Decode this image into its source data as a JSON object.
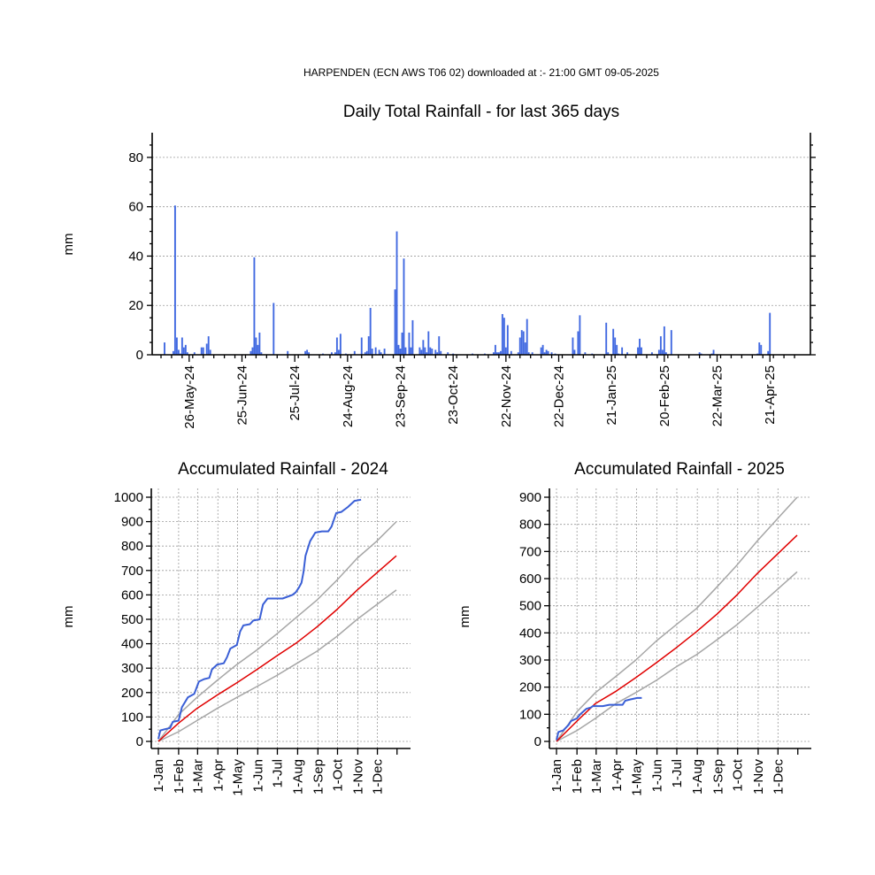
{
  "header": "HARPENDEN (ECN AWS T06 02) downloaded at :- 21:00 GMT 09-05-2025",
  "colors": {
    "bar": "#4169e1",
    "actual": "#3a5fd6",
    "mean": "#e00000",
    "range": "#a6a6a6"
  },
  "chart_data": [
    {
      "id": "daily",
      "type": "bar",
      "title": "Daily Total Rainfall - for last 365 days",
      "ylabel": "mm",
      "ylim": [
        0,
        90
      ],
      "yticks": [
        0,
        20,
        40,
        60,
        80
      ],
      "x_start": "2024-05-10",
      "x_end": "2025-05-09",
      "x_ticks": [
        "26-May-24",
        "25-Jun-24",
        "25-Jul-24",
        "24-Aug-24",
        "23-Sep-24",
        "23-Oct-24",
        "22-Nov-24",
        "22-Dec-24",
        "21-Jan-25",
        "20-Feb-25",
        "22-Mar-25",
        "21-Apr-25"
      ],
      "grid": true,
      "bars": [
        [
          "2024-05-12",
          5
        ],
        [
          "2024-05-17",
          1.5
        ],
        [
          "2024-05-18",
          60.5
        ],
        [
          "2024-05-19",
          7
        ],
        [
          "2024-05-20",
          2
        ],
        [
          "2024-05-21",
          0.5
        ],
        [
          "2024-05-22",
          7
        ],
        [
          "2024-05-23",
          3
        ],
        [
          "2024-05-24",
          4
        ],
        [
          "2024-05-25",
          1
        ],
        [
          "2024-05-29",
          1
        ],
        [
          "2024-06-02",
          3
        ],
        [
          "2024-06-03",
          3
        ],
        [
          "2024-06-05",
          4.5
        ],
        [
          "2024-06-06",
          7.5
        ],
        [
          "2024-06-07",
          2
        ],
        [
          "2024-06-30",
          1.5
        ],
        [
          "2024-07-01",
          3
        ],
        [
          "2024-07-02",
          39.5
        ],
        [
          "2024-07-03",
          7
        ],
        [
          "2024-07-04",
          4
        ],
        [
          "2024-07-05",
          9
        ],
        [
          "2024-07-06",
          1
        ],
        [
          "2024-07-13",
          21
        ],
        [
          "2024-07-21",
          1.5
        ],
        [
          "2024-07-31",
          1.5
        ],
        [
          "2024-08-01",
          2
        ],
        [
          "2024-08-02",
          1
        ],
        [
          "2024-08-10",
          0.5
        ],
        [
          "2024-08-15",
          1
        ],
        [
          "2024-08-17",
          1
        ],
        [
          "2024-08-18",
          7
        ],
        [
          "2024-08-19",
          2
        ],
        [
          "2024-08-20",
          8.5
        ],
        [
          "2024-08-23",
          0.5
        ],
        [
          "2024-08-28",
          1.5
        ],
        [
          "2024-09-01",
          7
        ],
        [
          "2024-09-03",
          1
        ],
        [
          "2024-09-04",
          1.5
        ],
        [
          "2024-09-05",
          7.5
        ],
        [
          "2024-09-06",
          19
        ],
        [
          "2024-09-07",
          2.5
        ],
        [
          "2024-09-09",
          3
        ],
        [
          "2024-09-11",
          2
        ],
        [
          "2024-09-12",
          1
        ],
        [
          "2024-09-14",
          2.5
        ],
        [
          "2024-09-20",
          26.5
        ],
        [
          "2024-09-21",
          50
        ],
        [
          "2024-09-22",
          4
        ],
        [
          "2024-09-23",
          2.5
        ],
        [
          "2024-09-24",
          9
        ],
        [
          "2024-09-25",
          39
        ],
        [
          "2024-09-26",
          3
        ],
        [
          "2024-09-28",
          9
        ],
        [
          "2024-09-29",
          3
        ],
        [
          "2024-09-30",
          14
        ],
        [
          "2024-10-04",
          3
        ],
        [
          "2024-10-05",
          2
        ],
        [
          "2024-10-06",
          6
        ],
        [
          "2024-10-07",
          3
        ],
        [
          "2024-10-08",
          1
        ],
        [
          "2024-10-09",
          9.5
        ],
        [
          "2024-10-10",
          3
        ],
        [
          "2024-10-11",
          2.5
        ],
        [
          "2024-10-13",
          2
        ],
        [
          "2024-10-14",
          1
        ],
        [
          "2024-10-15",
          7.5
        ],
        [
          "2024-10-16",
          1.5
        ],
        [
          "2024-10-20",
          1
        ],
        [
          "2024-10-23",
          0.5
        ],
        [
          "2024-11-03",
          0.5
        ],
        [
          "2024-11-10",
          0.5
        ],
        [
          "2024-11-15",
          1
        ],
        [
          "2024-11-16",
          4
        ],
        [
          "2024-11-17",
          1
        ],
        [
          "2024-11-18",
          1
        ],
        [
          "2024-11-19",
          1.5
        ],
        [
          "2024-11-20",
          16.5
        ],
        [
          "2024-11-21",
          15
        ],
        [
          "2024-11-22",
          3
        ],
        [
          "2024-11-23",
          12
        ],
        [
          "2024-11-25",
          1.5
        ],
        [
          "2024-11-29",
          1
        ],
        [
          "2024-11-30",
          7
        ],
        [
          "2024-12-01",
          10
        ],
        [
          "2024-12-02",
          9.5
        ],
        [
          "2024-12-03",
          5
        ],
        [
          "2024-12-04",
          14.5
        ],
        [
          "2024-12-05",
          1
        ],
        [
          "2024-12-07",
          1
        ],
        [
          "2024-12-12",
          3
        ],
        [
          "2024-12-13",
          4
        ],
        [
          "2024-12-14",
          1
        ],
        [
          "2024-12-15",
          2
        ],
        [
          "2024-12-16",
          1.5
        ],
        [
          "2024-12-18",
          1
        ],
        [
          "2024-12-20",
          0.5
        ],
        [
          "2024-12-30",
          7
        ],
        [
          "2024-12-31",
          2
        ],
        [
          "2025-01-02",
          9.5
        ],
        [
          "2025-01-03",
          16
        ],
        [
          "2025-01-06",
          1
        ],
        [
          "2025-01-10",
          0.5
        ],
        [
          "2025-01-18",
          13
        ],
        [
          "2025-01-19",
          1
        ],
        [
          "2025-01-22",
          10.5
        ],
        [
          "2025-01-23",
          7
        ],
        [
          "2025-01-24",
          4
        ],
        [
          "2025-01-25",
          0.5
        ],
        [
          "2025-01-27",
          3
        ],
        [
          "2025-01-30",
          1
        ],
        [
          "2025-02-05",
          3
        ],
        [
          "2025-02-06",
          6.5
        ],
        [
          "2025-02-07",
          3
        ],
        [
          "2025-02-13",
          1
        ],
        [
          "2025-02-17",
          2
        ],
        [
          "2025-02-18",
          7.5
        ],
        [
          "2025-02-19",
          2
        ],
        [
          "2025-02-20",
          11.5
        ],
        [
          "2025-02-21",
          1
        ],
        [
          "2025-02-24",
          10
        ],
        [
          "2025-03-12",
          1
        ],
        [
          "2025-03-13",
          0.5
        ],
        [
          "2025-03-19",
          0.5
        ],
        [
          "2025-03-20",
          2
        ],
        [
          "2025-04-14",
          0.5
        ],
        [
          "2025-04-15",
          5
        ],
        [
          "2025-04-16",
          4
        ],
        [
          "2025-04-20",
          1.5
        ],
        [
          "2025-04-21",
          17
        ]
      ]
    },
    {
      "id": "acc2024",
      "type": "line",
      "title": "Accumulated Rainfall - 2024",
      "ylabel": "mm",
      "ylim": [
        0,
        1000
      ],
      "yticks": [
        0,
        100,
        200,
        300,
        400,
        500,
        600,
        700,
        800,
        900,
        1000
      ],
      "x_ticks": [
        "1-Jan",
        "1-Feb",
        "1-Mar",
        "1-Apr",
        "1-May",
        "1-Jun",
        "1-Jul",
        "1-Aug",
        "1-Sep",
        "1-Oct",
        "1-Nov",
        "1-Dec"
      ],
      "grid": true,
      "series": [
        {
          "role": "upper",
          "points": [
            [
              0,
              0
            ],
            [
              31,
              110
            ],
            [
              59,
              180
            ],
            [
              90,
              250
            ],
            [
              120,
              315
            ],
            [
              151,
              375
            ],
            [
              181,
              440
            ],
            [
              212,
              510
            ],
            [
              243,
              580
            ],
            [
              273,
              660
            ],
            [
              304,
              750
            ],
            [
              334,
              820
            ],
            [
              364,
              900
            ]
          ]
        },
        {
          "role": "mean",
          "points": [
            [
              0,
              0
            ],
            [
              31,
              75
            ],
            [
              59,
              135
            ],
            [
              90,
              190
            ],
            [
              120,
              240
            ],
            [
              151,
              295
            ],
            [
              181,
              350
            ],
            [
              212,
              405
            ],
            [
              243,
              470
            ],
            [
              273,
              540
            ],
            [
              304,
              620
            ],
            [
              334,
              690
            ],
            [
              364,
              760
            ]
          ]
        },
        {
          "role": "lower",
          "points": [
            [
              0,
              0
            ],
            [
              31,
              40
            ],
            [
              59,
              85
            ],
            [
              90,
              135
            ],
            [
              120,
              180
            ],
            [
              151,
              225
            ],
            [
              181,
              270
            ],
            [
              212,
              320
            ],
            [
              243,
              370
            ],
            [
              273,
              430
            ],
            [
              304,
              500
            ],
            [
              334,
              560
            ],
            [
              364,
              620
            ]
          ]
        },
        {
          "role": "actual",
          "points": [
            [
              0,
              10
            ],
            [
              3,
              45
            ],
            [
              10,
              50
            ],
            [
              18,
              55
            ],
            [
              22,
              80
            ],
            [
              31,
              85
            ],
            [
              36,
              140
            ],
            [
              45,
              180
            ],
            [
              55,
              195
            ],
            [
              62,
              245
            ],
            [
              70,
              255
            ],
            [
              78,
              260
            ],
            [
              82,
              295
            ],
            [
              90,
              315
            ],
            [
              100,
              320
            ],
            [
              105,
              345
            ],
            [
              110,
              380
            ],
            [
              120,
              395
            ],
            [
              125,
              450
            ],
            [
              130,
              475
            ],
            [
              140,
              480
            ],
            [
              145,
              495
            ],
            [
              155,
              500
            ],
            [
              160,
              560
            ],
            [
              167,
              585
            ],
            [
              175,
              585
            ],
            [
              190,
              585
            ],
            [
              205,
              600
            ],
            [
              210,
              610
            ],
            [
              215,
              630
            ],
            [
              219,
              650
            ],
            [
              222,
              695
            ],
            [
              225,
              760
            ],
            [
              232,
              820
            ],
            [
              240,
              855
            ],
            [
              250,
              860
            ],
            [
              260,
              860
            ],
            [
              265,
              880
            ],
            [
              272,
              935
            ],
            [
              280,
              940
            ],
            [
              290,
              960
            ],
            [
              300,
              985
            ],
            [
              310,
              990
            ]
          ]
        }
      ]
    },
    {
      "id": "acc2025",
      "type": "line",
      "title": "Accumulated Rainfall - 2025",
      "ylabel": "mm",
      "ylim": [
        0,
        900
      ],
      "yticks": [
        0,
        100,
        200,
        300,
        400,
        500,
        600,
        700,
        800,
        900
      ],
      "x_ticks": [
        "1-Jan",
        "1-Feb",
        "1-Mar",
        "1-Apr",
        "1-May",
        "1-Jun",
        "1-Jul",
        "1-Aug",
        "1-Sep",
        "1-Oct",
        "1-Nov",
        "1-Dec"
      ],
      "grid": true,
      "series": [
        {
          "role": "upper",
          "points": [
            [
              0,
              0
            ],
            [
              31,
              110
            ],
            [
              59,
              180
            ],
            [
              90,
              240
            ],
            [
              120,
              300
            ],
            [
              151,
              370
            ],
            [
              181,
              430
            ],
            [
              212,
              490
            ],
            [
              243,
              570
            ],
            [
              273,
              650
            ],
            [
              304,
              740
            ],
            [
              334,
              820
            ],
            [
              364,
              900
            ]
          ]
        },
        {
          "role": "mean",
          "points": [
            [
              0,
              0
            ],
            [
              31,
              75
            ],
            [
              59,
              140
            ],
            [
              90,
              185
            ],
            [
              120,
              235
            ],
            [
              151,
              290
            ],
            [
              181,
              345
            ],
            [
              212,
              405
            ],
            [
              243,
              470
            ],
            [
              273,
              540
            ],
            [
              304,
              620
            ],
            [
              334,
              690
            ],
            [
              364,
              760
            ]
          ]
        },
        {
          "role": "lower",
          "points": [
            [
              0,
              0
            ],
            [
              31,
              40
            ],
            [
              59,
              85
            ],
            [
              90,
              140
            ],
            [
              120,
              180
            ],
            [
              151,
              225
            ],
            [
              181,
              275
            ],
            [
              212,
              320
            ],
            [
              243,
              375
            ],
            [
              273,
              430
            ],
            [
              304,
              495
            ],
            [
              334,
              560
            ],
            [
              364,
              625
            ]
          ]
        },
        {
          "role": "actual",
          "points": [
            [
              0,
              5
            ],
            [
              3,
              35
            ],
            [
              10,
              40
            ],
            [
              18,
              60
            ],
            [
              22,
              75
            ],
            [
              31,
              85
            ],
            [
              36,
              100
            ],
            [
              45,
              120
            ],
            [
              52,
              125
            ],
            [
              55,
              130
            ],
            [
              70,
              130
            ],
            [
              80,
              135
            ],
            [
              100,
              135
            ],
            [
              104,
              150
            ],
            [
              112,
              155
            ],
            [
              122,
              160
            ],
            [
              129,
              160
            ]
          ]
        }
      ]
    }
  ]
}
